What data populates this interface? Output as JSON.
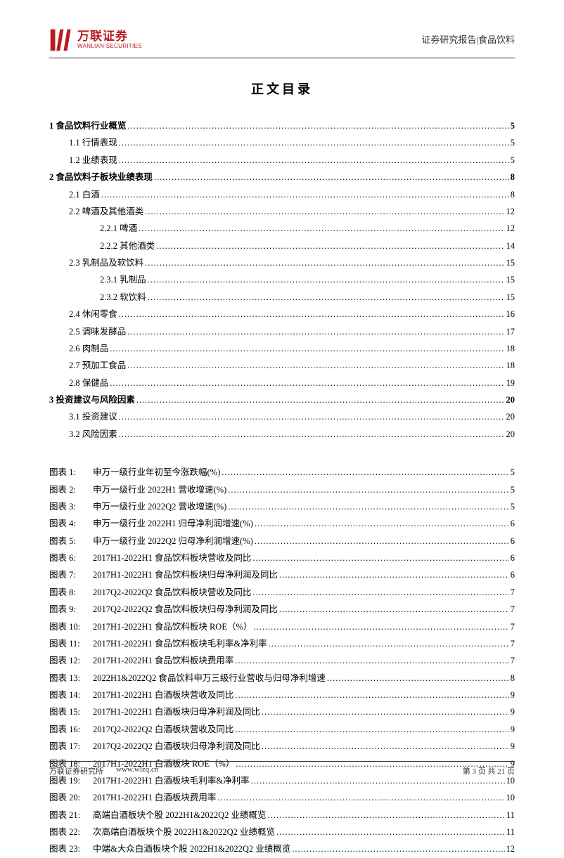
{
  "header": {
    "logo_cn": "万联证券",
    "logo_en": "WANLIAN SECURITIES",
    "right_text": "证券研究报告|食品饮料"
  },
  "title": "正文目录",
  "toc": [
    {
      "level": 1,
      "text": "1 食品饮料行业概览",
      "page": "5"
    },
    {
      "level": 2,
      "text": "1.1 行情表现",
      "page": "5"
    },
    {
      "level": 2,
      "text": "1.2 业绩表现",
      "page": "5"
    },
    {
      "level": 1,
      "text": "2 食品饮料子板块业绩表现",
      "page": "8"
    },
    {
      "level": 2,
      "text": "2.1 白酒",
      "page": "8"
    },
    {
      "level": 2,
      "text": "2.2 啤酒及其他酒类",
      "page": "12"
    },
    {
      "level": 3,
      "text": "2.2.1 啤酒",
      "page": "12"
    },
    {
      "level": 3,
      "text": "2.2.2 其他酒类",
      "page": "14"
    },
    {
      "level": 2,
      "text": "2.3 乳制品及软饮料",
      "page": "15"
    },
    {
      "level": 3,
      "text": "2.3.1 乳制品",
      "page": "15"
    },
    {
      "level": 3,
      "text": "2.3.2 软饮料",
      "page": "15"
    },
    {
      "level": 2,
      "text": "2.4 休闲零食",
      "page": "16"
    },
    {
      "level": 2,
      "text": "2.5 调味发酵品",
      "page": "17"
    },
    {
      "level": 2,
      "text": "2.6 肉制品",
      "page": "18"
    },
    {
      "level": 2,
      "text": "2.7 预加工食品",
      "page": "18"
    },
    {
      "level": 2,
      "text": "2.8 保健品",
      "page": "19"
    },
    {
      "level": 1,
      "text": "3 投资建议与风险因素",
      "page": "20"
    },
    {
      "level": 2,
      "text": "3.1 投资建议",
      "page": "20"
    },
    {
      "level": 2,
      "text": "3.2 风险因素",
      "page": "20"
    }
  ],
  "figures": [
    {
      "num": "图表 1:",
      "title": "申万一级行业年初至今涨跌幅(%)",
      "page": "5"
    },
    {
      "num": "图表 2:",
      "title": "申万一级行业 2022H1 营收增速(%)",
      "page": "5"
    },
    {
      "num": "图表 3:",
      "title": "申万一级行业 2022Q2 营收增速(%)",
      "page": "5"
    },
    {
      "num": "图表 4:",
      "title": "申万一级行业 2022H1 归母净利润增速(%)",
      "page": "6"
    },
    {
      "num": "图表 5:",
      "title": "申万一级行业 2022Q2 归母净利润增速(%)",
      "page": "6"
    },
    {
      "num": "图表 6:",
      "title": "2017H1-2022H1 食品饮料板块营收及同比",
      "page": "6"
    },
    {
      "num": "图表 7:",
      "title": "2017H1-2022H1 食品饮料板块归母净利润及同比",
      "page": "6"
    },
    {
      "num": "图表 8:",
      "title": "2017Q2-2022Q2 食品饮料板块营收及同比",
      "page": "7"
    },
    {
      "num": "图表 9:",
      "title": "2017Q2-2022Q2 食品饮料板块归母净利润及同比",
      "page": "7"
    },
    {
      "num": "图表 10:",
      "title": "2017H1-2022H1 食品饮料板块 ROE（%）",
      "page": "7"
    },
    {
      "num": "图表 11:",
      "title": "2017H1-2022H1 食品饮料板块毛利率&净利率",
      "page": "7"
    },
    {
      "num": "图表 12:",
      "title": "2017H1-2022H1 食品饮料板块费用率",
      "page": "7"
    },
    {
      "num": "图表 13:",
      "title": "2022H1&2022Q2 食品饮料申万三级行业营收与归母净利增速",
      "page": "8"
    },
    {
      "num": "图表 14:",
      "title": "2017H1-2022H1 白酒板块营收及同比",
      "page": "9"
    },
    {
      "num": "图表 15:",
      "title": "2017H1-2022H1 白酒板块归母净利润及同比",
      "page": "9"
    },
    {
      "num": "图表 16:",
      "title": "2017Q2-2022Q2 白酒板块营收及同比",
      "page": "9"
    },
    {
      "num": "图表 17:",
      "title": "2017Q2-2022Q2 白酒板块归母净利润及同比",
      "page": "9"
    },
    {
      "num": "图表 18:",
      "title": "2017H1-2022H1 白酒板块 ROE（%）",
      "page": "9"
    },
    {
      "num": "图表 19:",
      "title": "2017H1-2022H1 白酒板块毛利率&净利率",
      "page": "10"
    },
    {
      "num": "图表 20:",
      "title": "2017H1-2022H1 白酒板块费用率",
      "page": "10"
    },
    {
      "num": "图表 21:",
      "title": "高端白酒板块个股 2022H1&2022Q2 业绩概览",
      "page": "11"
    },
    {
      "num": "图表 22:",
      "title": "次高端白酒板块个股 2022H1&2022Q2 业绩概览",
      "page": "11"
    },
    {
      "num": "图表 23:",
      "title": "中端&大众白酒板块个股 2022H1&2022Q2 业绩概览",
      "page": "12"
    }
  ],
  "footer": {
    "org": "万联证券研究所",
    "url": "www.wlzq.cn",
    "pager": "第 3 页 共 21 页"
  },
  "colors": {
    "brand": "#b81c22",
    "text": "#000000",
    "rule": "#333333"
  }
}
